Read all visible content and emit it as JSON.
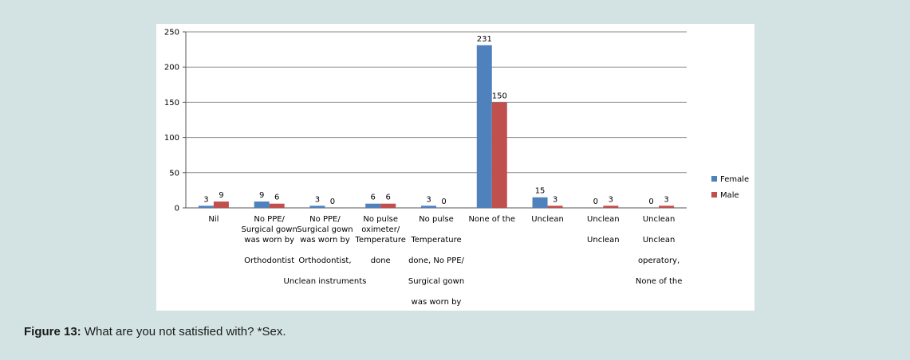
{
  "figure": {
    "label": "Figure 13:",
    "caption": "What are you not satisfied with? *Sex."
  },
  "chart_data": {
    "type": "bar",
    "ylim": [
      0,
      250
    ],
    "yticks": [
      0,
      50,
      100,
      150,
      200,
      250
    ],
    "grid": true,
    "legend_position": "right",
    "categories": [
      [
        "Nil"
      ],
      [
        "No PPE/",
        "Surgical gown",
        "was worn by",
        "",
        "Orthodontist"
      ],
      [
        "No PPE/",
        "Surgical gown",
        "was worn by",
        "",
        "Orthodontist,",
        "",
        "Unclean instruments"
      ],
      [
        "No pulse",
        "oximeter/",
        "Temperature",
        "",
        "done"
      ],
      [
        "No pulse",
        "",
        "Temperature",
        "",
        "done, No PPE/",
        "",
        "Surgical gown",
        "",
        "was worn by"
      ],
      [
        "None of the"
      ],
      [
        "Unclean"
      ],
      [
        "Unclean",
        "",
        "Unclean"
      ],
      [
        "Unclean",
        "",
        "Unclean",
        "",
        "operatory,",
        "",
        "None of the"
      ]
    ],
    "series": [
      {
        "name": "Female",
        "color": "#4f81bd",
        "values": [
          3,
          9,
          3,
          6,
          3,
          231,
          15,
          0,
          0
        ]
      },
      {
        "name": "Male",
        "color": "#c0504d",
        "values": [
          9,
          6,
          0,
          6,
          0,
          150,
          3,
          3,
          3
        ]
      }
    ]
  }
}
